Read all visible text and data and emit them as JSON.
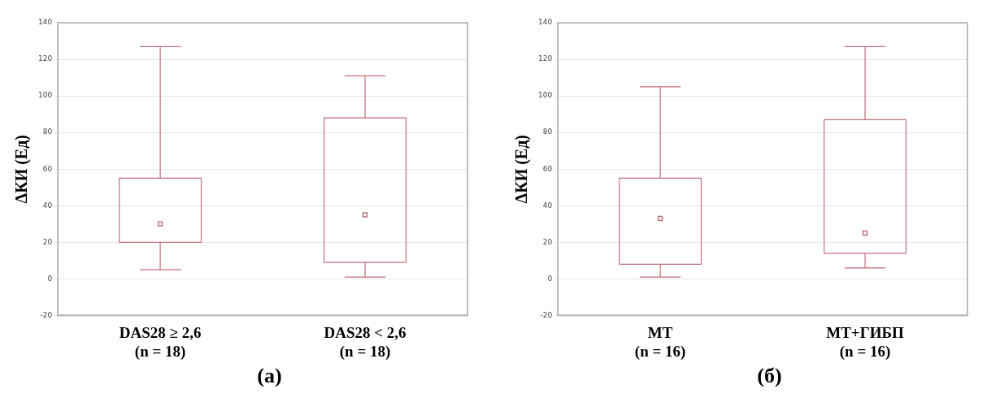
{
  "chart_data": [
    {
      "type": "box",
      "title": "(а)",
      "ylabel": "ΔКИ (Ед)",
      "categories": [
        "DAS28 ≥ 2,6\n(n = 18)",
        "DAS28 < 2,6\n(n = 18)"
      ],
      "color": "#c0707a",
      "marker": "square",
      "grid": "y",
      "ylim": [
        -20,
        140
      ],
      "yticks": [
        -20,
        0,
        20,
        40,
        60,
        80,
        100,
        120,
        140
      ],
      "boxes": [
        {
          "low": 5,
          "q1": 20,
          "median": 30,
          "q3": 55,
          "high": 127
        },
        {
          "low": 1,
          "q1": 9,
          "median": 35,
          "q3": 88,
          "high": 111
        }
      ]
    },
    {
      "type": "box",
      "title": "(б)",
      "ylabel": "ΔКИ (Ед)",
      "categories": [
        "МТ\n(n = 16)",
        "МТ+ГИБП\n(n = 16)"
      ],
      "color": "#c0707a",
      "marker": "square",
      "grid": "y",
      "ylim": [
        -20,
        140
      ],
      "yticks": [
        -20,
        0,
        20,
        40,
        60,
        80,
        100,
        120,
        140
      ],
      "boxes": [
        {
          "low": 1,
          "q1": 8,
          "median": 33,
          "q3": 55,
          "high": 105
        },
        {
          "low": 6,
          "q1": 14,
          "median": 25,
          "q3": 87,
          "high": 127
        }
      ]
    }
  ]
}
